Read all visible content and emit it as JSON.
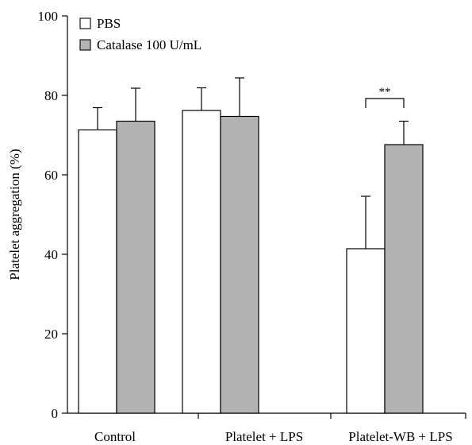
{
  "chart_data": {
    "type": "bar",
    "title": "",
    "xlabel": "",
    "ylabel": "Platelet aggregation (%)",
    "ylim": [
      0,
      100
    ],
    "yticks": [
      0,
      20,
      40,
      60,
      80,
      100
    ],
    "categories": [
      "Control",
      "Platelet + LPS",
      "Platelet-WB + LPS"
    ],
    "series": [
      {
        "name": "PBS",
        "color": "#ffffff",
        "values": [
          71.3,
          76.2,
          41.4
        ],
        "errors": [
          5.6,
          5.7,
          13.2
        ]
      },
      {
        "name": "Catalase 100 U/mL",
        "color": "#b3b3b3",
        "values": [
          73.5,
          74.7,
          67.6
        ],
        "errors": [
          8.3,
          9.7,
          5.9
        ]
      }
    ],
    "legend": "top-left",
    "grid": false,
    "annotations": [
      {
        "text": "**",
        "category": "Platelet-WB + LPS",
        "between": [
          "PBS",
          "Catalase 100 U/mL"
        ]
      }
    ]
  }
}
